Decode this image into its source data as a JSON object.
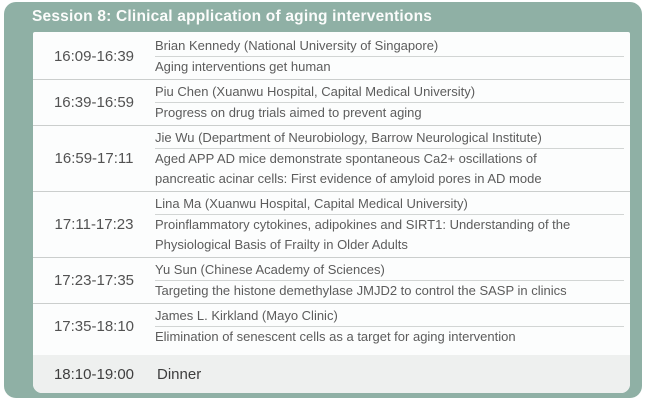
{
  "header": {
    "title": "Session 8: Clinical application of aging interventions"
  },
  "colors": {
    "frame_sage": "#8fb0a5",
    "panel_white": "#fcfdfd",
    "divider_gray": "#cbcecd",
    "dinner_bg": "#eef0ef",
    "header_text": "#fbfcfb",
    "body_text": "#5c5c5c"
  },
  "schedule": {
    "rows": [
      {
        "time": "16:09-16:39",
        "speaker": "Brian Kennedy (National University of Singapore)",
        "title": "Aging interventions get human"
      },
      {
        "time": "16:39-16:59",
        "speaker": "Piu Chen (Xuanwu Hospital, Capital Medical University)",
        "title": "Progress on drug trials aimed to prevent aging"
      },
      {
        "time": "16:59-17:11",
        "speaker": "Jie Wu (Department of Neurobiology, Barrow Neurological Institute)",
        "title": "Aged APP AD mice demonstrate spontaneous Ca2+ oscillations of\npancreatic acinar cells: First evidence of amyloid pores in AD mode"
      },
      {
        "time": "17:11-17:23",
        "speaker": "Lina Ma (Xuanwu Hospital, Capital Medical University)",
        "title": "Proinflammatory cytokines, adipokines and SIRT1: Understanding of the\nPhysiological Basis of Frailty in Older Adults"
      },
      {
        "time": "17:23-17:35",
        "speaker": "Yu Sun (Chinese Academy of Sciences)",
        "title": "Targeting the histone demethylase JMJD2 to control the SASP in clinics"
      },
      {
        "time": "17:35-18:10",
        "speaker": "James L. Kirkland (Mayo Clinic)",
        "title": "Elimination of senescent cells as a target for aging intervention"
      }
    ],
    "footer": {
      "time": "18:10-19:00",
      "label": "Dinner"
    }
  }
}
